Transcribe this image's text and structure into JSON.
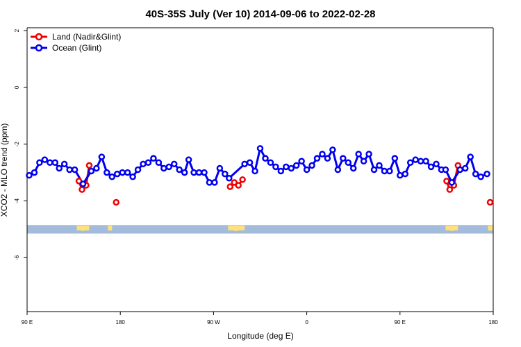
{
  "chart_data": {
    "type": "line",
    "title": "40S-35S July (Ver 10)   2014-09-06 to 2022-02-28",
    "xlabel": "Longitude (deg E)",
    "ylabel": "XCO2 - MLO trend (ppm)",
    "xlim": [
      90,
      540
    ],
    "ylim": [
      -7.9,
      2.1
    ],
    "x_ticks": [
      {
        "value": 90,
        "label": "90 E"
      },
      {
        "value": 180,
        "label": "180"
      },
      {
        "value": 270,
        "label": "90 W"
      },
      {
        "value": 360,
        "label": "0"
      },
      {
        "value": 450,
        "label": "90 E"
      },
      {
        "value": 540,
        "label": "180"
      }
    ],
    "y_ticks": [
      {
        "value": 2,
        "label": "2"
      },
      {
        "value": 0,
        "label": "0"
      },
      {
        "value": -2,
        "label": "-2"
      },
      {
        "value": -4,
        "label": "-4"
      },
      {
        "value": -6,
        "label": "-6"
      }
    ],
    "legend_position": "top-left",
    "series": [
      {
        "name": "Land (Nadir&Glint)",
        "color": "#ee0000",
        "segments": [
          [
            [
              140,
              -3.3
            ],
            [
              143,
              -3.6
            ],
            [
              147,
              -3.45
            ],
            [
              150,
              -2.75
            ]
          ],
          [
            [
              176,
              -4.05
            ]
          ],
          [
            [
              286,
              -3.5
            ],
            [
              290,
              -3.35
            ],
            [
              294,
              -3.45
            ],
            [
              298,
              -3.25
            ]
          ],
          [
            [
              495,
              -3.3
            ],
            [
              498,
              -3.6
            ],
            [
              502,
              -3.45
            ],
            [
              506,
              -2.75
            ]
          ],
          [
            [
              537,
              -4.05
            ]
          ]
        ]
      },
      {
        "name": "Ocean (Glint)",
        "color": "#0000ee",
        "points": [
          [
            92,
            -3.1
          ],
          [
            97,
            -3.0
          ],
          [
            102,
            -2.65
          ],
          [
            107,
            -2.55
          ],
          [
            112,
            -2.65
          ],
          [
            117,
            -2.65
          ],
          [
            121,
            -2.85
          ],
          [
            126,
            -2.7
          ],
          [
            131,
            -2.9
          ],
          [
            136,
            -2.9
          ],
          [
            144,
            -3.4
          ],
          [
            152,
            -2.95
          ],
          [
            157,
            -2.85
          ],
          [
            162,
            -2.45
          ],
          [
            167,
            -3.0
          ],
          [
            172,
            -3.15
          ],
          [
            177,
            -3.05
          ],
          [
            182,
            -3.0
          ],
          [
            187,
            -3.0
          ],
          [
            192,
            -3.15
          ],
          [
            197,
            -2.9
          ],
          [
            202,
            -2.7
          ],
          [
            207,
            -2.65
          ],
          [
            212,
            -2.5
          ],
          [
            217,
            -2.65
          ],
          [
            222,
            -2.85
          ],
          [
            227,
            -2.8
          ],
          [
            232,
            -2.7
          ],
          [
            237,
            -2.9
          ],
          [
            242,
            -3.0
          ],
          [
            246,
            -2.55
          ],
          [
            251,
            -3.0
          ],
          [
            256,
            -3.0
          ],
          [
            261,
            -3.0
          ],
          [
            266,
            -3.35
          ],
          [
            271,
            -3.35
          ],
          [
            276,
            -2.85
          ],
          [
            281,
            -3.05
          ],
          [
            285,
            -3.2
          ],
          [
            300,
            -2.7
          ],
          [
            305,
            -2.65
          ],
          [
            310,
            -2.95
          ],
          [
            315,
            -2.15
          ],
          [
            320,
            -2.5
          ],
          [
            325,
            -2.65
          ],
          [
            330,
            -2.8
          ],
          [
            335,
            -2.95
          ],
          [
            340,
            -2.8
          ],
          [
            345,
            -2.85
          ],
          [
            350,
            -2.75
          ],
          [
            355,
            -2.6
          ],
          [
            360,
            -2.9
          ],
          [
            365,
            -2.75
          ],
          [
            370,
            -2.5
          ],
          [
            375,
            -2.35
          ],
          [
            380,
            -2.5
          ],
          [
            385,
            -2.2
          ],
          [
            390,
            -2.9
          ],
          [
            395,
            -2.5
          ],
          [
            400,
            -2.65
          ],
          [
            405,
            -2.85
          ],
          [
            410,
            -2.35
          ],
          [
            415,
            -2.6
          ],
          [
            420,
            -2.35
          ],
          [
            425,
            -2.9
          ],
          [
            430,
            -2.75
          ],
          [
            435,
            -2.95
          ],
          [
            440,
            -2.95
          ],
          [
            445,
            -2.5
          ],
          [
            450,
            -3.1
          ],
          [
            455,
            -3.05
          ],
          [
            460,
            -2.65
          ],
          [
            465,
            -2.55
          ],
          [
            470,
            -2.6
          ],
          [
            475,
            -2.6
          ],
          [
            480,
            -2.8
          ],
          [
            485,
            -2.7
          ],
          [
            490,
            -2.9
          ],
          [
            494,
            -2.9
          ],
          [
            500,
            -3.35
          ],
          [
            508,
            -2.9
          ],
          [
            513,
            -2.85
          ],
          [
            518,
            -2.45
          ],
          [
            523,
            -3.05
          ],
          [
            528,
            -3.15
          ],
          [
            534,
            -3.05
          ]
        ]
      }
    ],
    "land_strip": {
      "y_range": [
        -5.15,
        -4.85
      ],
      "ocean_color": "#a4bcdb",
      "land_color": "#ffe07a",
      "land_spans": [
        [
          138,
          150
        ],
        [
          168,
          172
        ],
        [
          284,
          300
        ],
        [
          494,
          506
        ],
        [
          535,
          540
        ]
      ]
    }
  }
}
